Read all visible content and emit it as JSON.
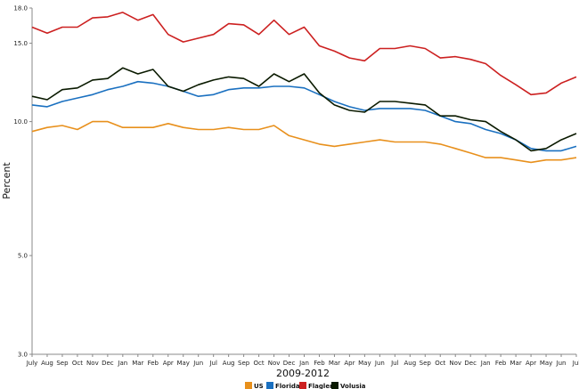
{
  "chart_data": {
    "type": "line",
    "xlabel": "2009-2012",
    "ylabel": "Percent",
    "ylim": [
      3.0,
      18.0
    ],
    "y_ticks": [
      "18.0",
      "15.0",
      "10.0",
      "5.0",
      "3.0"
    ],
    "y_tick_values": [
      18.0,
      15.0,
      10.0,
      5.0,
      3.0
    ],
    "y_scale": "log",
    "grid": false,
    "legend_position": "bottom",
    "categories": [
      "July",
      "Aug",
      "Sep",
      "Oct",
      "Nov",
      "Dec",
      "Jan",
      "Mar",
      "Feb",
      "Apr",
      "May",
      "Jun",
      "Jul",
      "Aug",
      "Sep",
      "Oct",
      "Nov",
      "Dec",
      "Jan",
      "Feb",
      "Mar",
      "Apr",
      "May",
      "Jun",
      "Jul",
      "Aug",
      "Sep",
      "Oct",
      "Nov",
      "Dec",
      "Jan",
      "Feb",
      "Mar",
      "Apr",
      "May",
      "Jun",
      "Jul"
    ],
    "series": [
      {
        "name": "US",
        "color": "#e8901c",
        "values": [
          9.5,
          9.7,
          9.8,
          9.6,
          10.0,
          10.0,
          9.7,
          9.7,
          9.7,
          9.9,
          9.7,
          9.6,
          9.6,
          9.7,
          9.6,
          9.6,
          9.8,
          9.3,
          9.1,
          8.9,
          8.8,
          8.9,
          9.0,
          9.1,
          9.0,
          9.0,
          9.0,
          8.9,
          8.7,
          8.5,
          8.3,
          8.3,
          8.2,
          8.1,
          8.2,
          8.2,
          8.3
        ]
      },
      {
        "name": "Florida",
        "color": "#1a70c0",
        "values": [
          10.9,
          10.8,
          11.1,
          11.3,
          11.5,
          11.8,
          12.0,
          12.3,
          12.2,
          12.0,
          11.7,
          11.4,
          11.5,
          11.8,
          11.9,
          11.9,
          12.0,
          12.0,
          11.9,
          11.5,
          11.1,
          10.8,
          10.6,
          10.7,
          10.7,
          10.7,
          10.6,
          10.3,
          10.0,
          9.9,
          9.6,
          9.4,
          9.1,
          8.7,
          8.6,
          8.6,
          8.8
        ]
      },
      {
        "name": "Flagler",
        "color": "#cc2020",
        "values": [
          16.3,
          15.8,
          16.3,
          16.3,
          17.1,
          17.2,
          17.6,
          16.9,
          17.4,
          15.7,
          15.1,
          15.4,
          15.7,
          16.6,
          16.5,
          15.7,
          16.9,
          15.7,
          16.3,
          14.8,
          14.4,
          13.9,
          13.7,
          14.6,
          14.6,
          14.8,
          14.6,
          13.9,
          14.0,
          13.8,
          13.5,
          12.7,
          12.1,
          11.5,
          11.6,
          12.2,
          12.6
        ]
      },
      {
        "name": "Volusia",
        "color": "#0a1a00",
        "values": [
          11.4,
          11.2,
          11.8,
          11.9,
          12.4,
          12.5,
          13.2,
          12.8,
          13.1,
          12.0,
          11.7,
          12.1,
          12.4,
          12.6,
          12.5,
          12.0,
          12.8,
          12.3,
          12.8,
          11.6,
          10.9,
          10.6,
          10.5,
          11.1,
          11.1,
          11.0,
          10.9,
          10.3,
          10.3,
          10.1,
          10.0,
          9.5,
          9.1,
          8.6,
          8.7,
          9.1,
          9.4
        ]
      }
    ]
  }
}
